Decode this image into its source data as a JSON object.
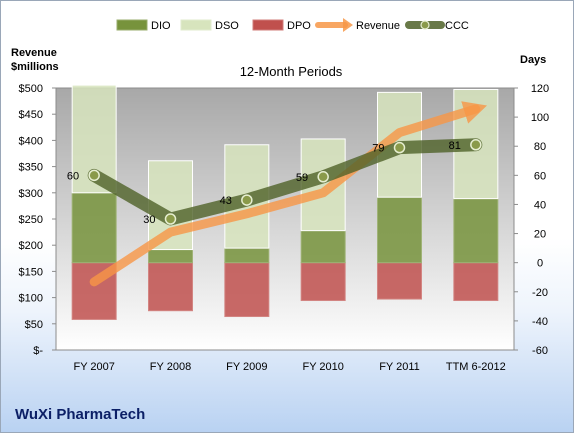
{
  "company": "WuXi PharmaTech",
  "chart_data": {
    "type": "bar",
    "title": "12-Month Periods",
    "ylabel_left": [
      "Revenue",
      "$millions"
    ],
    "ylabel_right": "Days",
    "categories": [
      "FY 2007",
      "FY 2008",
      "FY 2009",
      "FY 2010",
      "FY 2011",
      "TTM 6-2012"
    ],
    "ylim_left": [
      0,
      500
    ],
    "ylim_right": [
      -60,
      120
    ],
    "yticks_left": [
      "$-",
      "$50",
      "$100",
      "$150",
      "$200",
      "$250",
      "$300",
      "$350",
      "$400",
      "$450",
      "$500"
    ],
    "yticks_right": [
      "-60",
      "-40",
      "-20",
      "0",
      "20",
      "40",
      "60",
      "80",
      "100",
      "120"
    ],
    "grid": false,
    "legend_position": "top",
    "legend": [
      "DIO",
      "DSO",
      "DPO",
      "Revenue",
      "CCC"
    ],
    "series": [
      {
        "name": "DIO",
        "axis": "right",
        "kind": "bar",
        "color": "#77933c",
        "values": [
          48,
          9,
          10,
          22,
          45,
          44
        ]
      },
      {
        "name": "DSO",
        "axis": "right",
        "kind": "bar",
        "color": "#d7e4bd",
        "values": [
          74,
          61,
          71,
          63,
          72,
          75
        ]
      },
      {
        "name": "DPO",
        "axis": "right",
        "kind": "bar",
        "color": "#c0504d",
        "values": [
          -39,
          -33,
          -37,
          -26,
          -25,
          -26
        ]
      },
      {
        "name": "Revenue",
        "axis": "left",
        "kind": "line",
        "color": "#f79646",
        "values": [
          130,
          225,
          260,
          300,
          415,
          460
        ]
      },
      {
        "name": "CCC",
        "axis": "right",
        "kind": "line",
        "color": "#4f6228",
        "values": [
          60,
          30,
          43,
          59,
          79,
          81
        ]
      }
    ],
    "data_labels": {
      "series": "CCC",
      "values": [
        "60",
        "30",
        "43",
        "59",
        "79",
        "81"
      ]
    }
  }
}
